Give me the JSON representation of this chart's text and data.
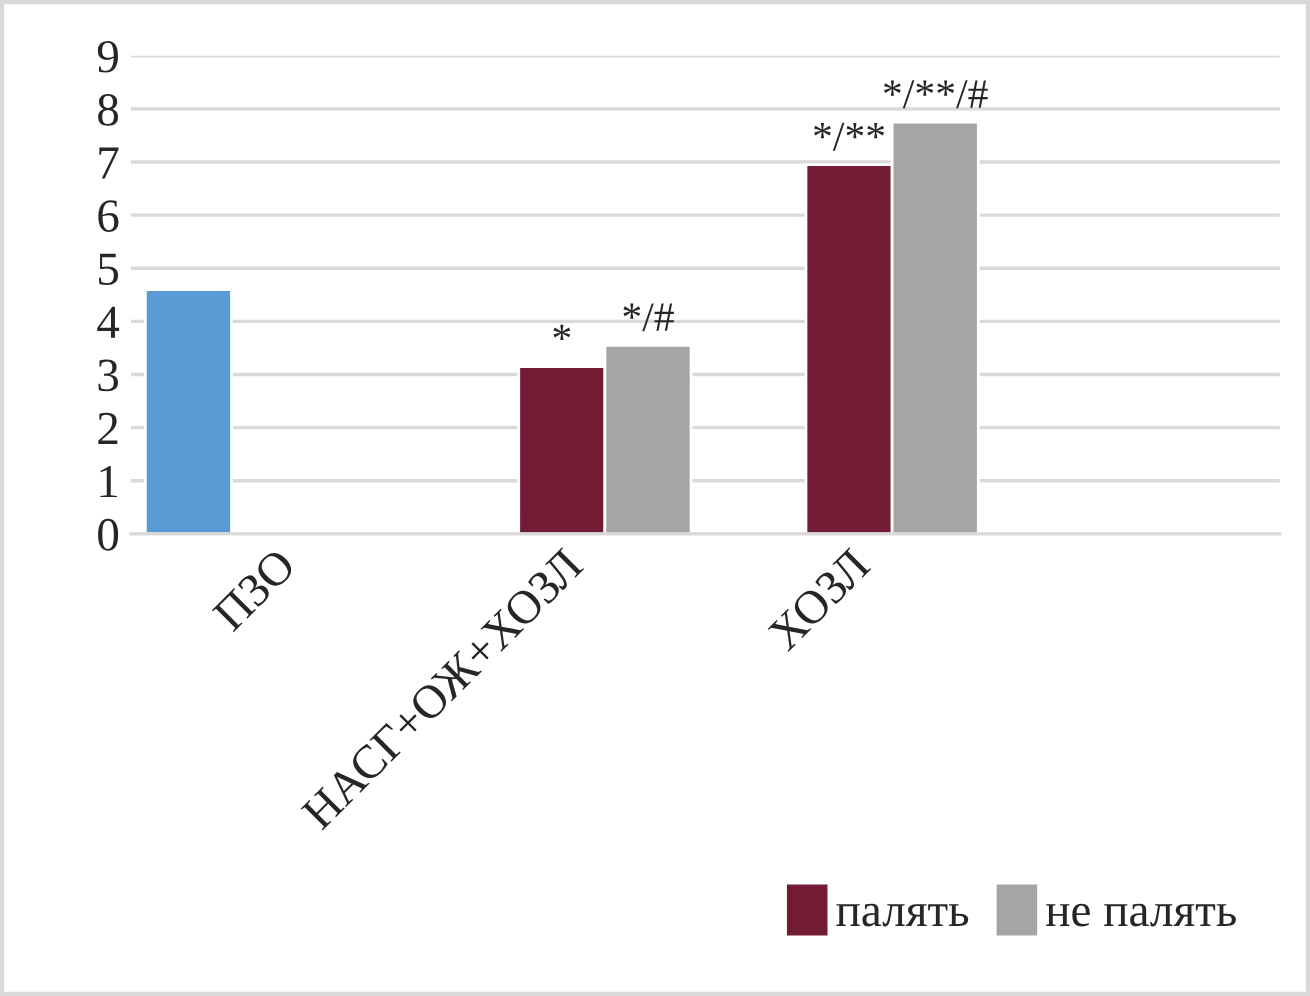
{
  "chart_data": {
    "type": "bar",
    "categories": [
      "ПЗО",
      "НАСГ+ОЖ+ХОЗЛ",
      "ХОЗЛ",
      null
    ],
    "series": [
      {
        "color": "#5b9bd5",
        "values": [
          4.6,
          null,
          null,
          null
        ]
      },
      {
        "name": "палять",
        "color": "#721b35",
        "values": [
          null,
          3.15,
          6.95,
          null
        ],
        "value_labels": [
          null,
          "*",
          "*/**",
          null
        ]
      },
      {
        "name": "не палять",
        "color": "#a5a5a5",
        "values": [
          null,
          3.55,
          7.75,
          null
        ],
        "value_labels": [
          null,
          "*/#",
          "*/**/#",
          null
        ]
      }
    ],
    "ylim": [
      0,
      9
    ],
    "yticks": [
      0,
      1,
      2,
      3,
      4,
      5,
      6,
      7,
      8,
      9
    ],
    "grid": "y",
    "legend": "bottom right"
  }
}
